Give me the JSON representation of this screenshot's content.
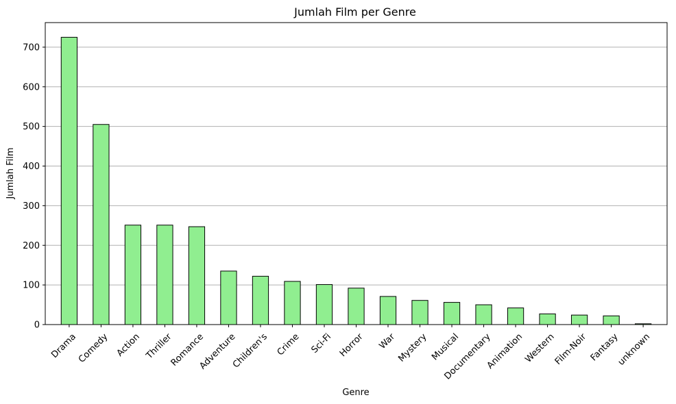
{
  "chart_data": {
    "type": "bar",
    "title": "Jumlah Film per Genre",
    "xlabel": "Genre",
    "ylabel": "Jumlah Film",
    "categories": [
      "Drama",
      "Comedy",
      "Action",
      "Thriller",
      "Romance",
      "Adventure",
      "Children's",
      "Crime",
      "Sci-Fi",
      "Horror",
      "War",
      "Mystery",
      "Musical",
      "Documentary",
      "Animation",
      "Western",
      "Film-Noir",
      "Fantasy",
      "unknown"
    ],
    "values": [
      725,
      505,
      251,
      251,
      247,
      135,
      122,
      109,
      101,
      92,
      71,
      61,
      56,
      50,
      42,
      27,
      24,
      22,
      2
    ],
    "ylim": [
      0,
      762
    ],
    "yticks": [
      "0",
      "100",
      "200",
      "300",
      "400",
      "500",
      "600",
      "700"
    ],
    "grid": "y",
    "bar_color": "#90ee90",
    "bar_edge_color": "#000000",
    "grid_color": "#b0b0b0"
  }
}
